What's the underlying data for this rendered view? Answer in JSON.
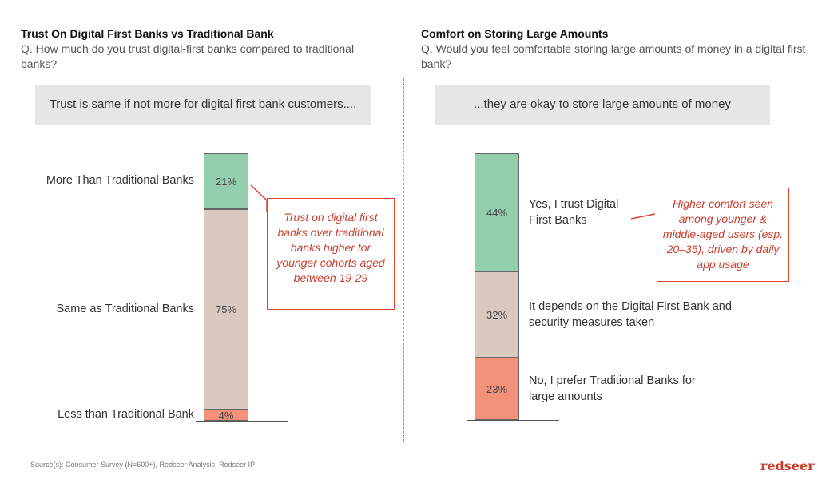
{
  "left": {
    "title": "Trust On Digital First Banks vs Traditional Bank",
    "question": "Q. How much do you trust digital-first banks compared to traditional banks?",
    "banner": "Trust is same if not more for digital first bank customers....",
    "callout": "Trust on digital first banks over traditional banks higher for younger cohorts aged between 19-29"
  },
  "right": {
    "title": "Comfort on Storing Large Amounts",
    "question": "Q. Would you feel comfortable storing large amounts of money in a digital first bank?",
    "banner": "...they are okay to store large amounts of money",
    "callout": "Higher comfort seen among younger & middle-aged users (esp. 20–35), driven by daily app usage"
  },
  "footer": {
    "source": "Source(s): Consumer Survey (N=600+), Redseer Analysis, Redseer IP",
    "brand": "redseer"
  },
  "colors": {
    "green": "#93cfac",
    "beige": "#d9c9be",
    "orange": "#f4917a",
    "accent": "#d9432f"
  },
  "chart_data": [
    {
      "type": "bar",
      "stacked": true,
      "title": "Trust On Digital First Banks vs Traditional Bank",
      "categories": [
        "More Than Traditional Banks",
        "Same as Traditional Banks",
        "Less than Traditional Bank"
      ],
      "values": [
        21,
        75,
        4
      ],
      "value_labels": [
        "21%",
        "75%",
        "4%"
      ],
      "colors": [
        "#93cfac",
        "#d9c9be",
        "#f4917a"
      ]
    },
    {
      "type": "bar",
      "stacked": true,
      "title": "Comfort on Storing Large Amounts",
      "categories": [
        "Yes, I trust Digital First Banks",
        "It depends on the Digital First Bank and security measures taken",
        "No, I prefer Traditional Banks for large amounts"
      ],
      "values": [
        44,
        32,
        23
      ],
      "value_labels": [
        "44%",
        "32%",
        "23%"
      ],
      "colors": [
        "#93cfac",
        "#d9c9be",
        "#f4917a"
      ]
    }
  ]
}
